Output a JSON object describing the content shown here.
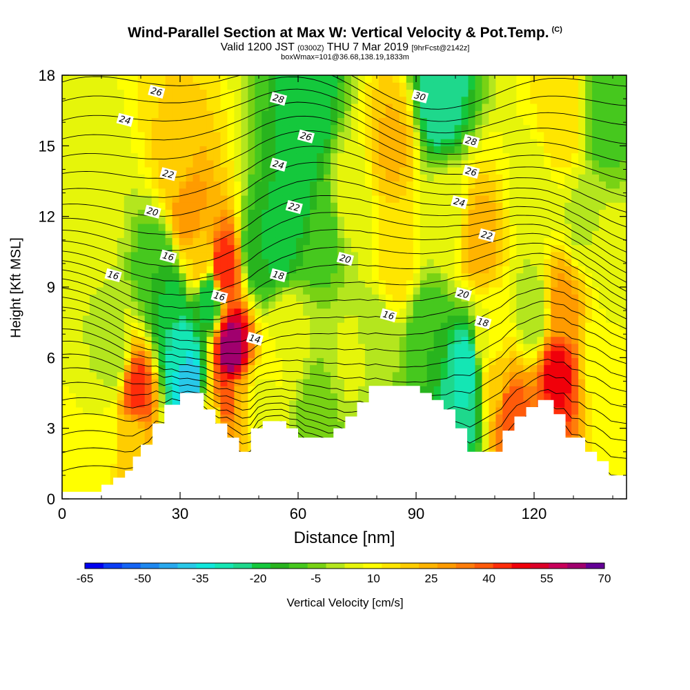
{
  "title": {
    "main": "Wind-Parallel Section at Max W: Vertical Velocity & Pot.Temp.",
    "mark": "(C)",
    "valid_a": "Valid 1200 JST",
    "valid_z": "(0300Z)",
    "valid_b": "THU 7 Mar 2019",
    "valid_c": "[9hrFcst@2142z]",
    "box": "boxWmax=101@36.68,138.19,1833m"
  },
  "chart_data": {
    "type": "heatmap",
    "xlabel": "Distance [nm]",
    "ylabel": "Height [Kft MSL]",
    "xlim": [
      0,
      143.5
    ],
    "ylim": [
      0,
      18
    ],
    "xticks": [
      0,
      30,
      60,
      90,
      120
    ],
    "yticks": [
      0,
      3,
      6,
      9,
      12,
      15,
      18
    ],
    "colorbar": {
      "label": "Vertical Velocity [cm/s]",
      "tick_labels": [
        "-65",
        "-50",
        "-35",
        "-20",
        "-5",
        "10",
        "25",
        "40",
        "55",
        "70"
      ],
      "levels": [
        -65,
        -60,
        -55,
        -50,
        -45,
        -40,
        -35,
        -30,
        -25,
        -20,
        -15,
        -10,
        -5,
        0,
        5,
        10,
        15,
        20,
        25,
        30,
        35,
        40,
        45,
        50,
        55,
        60,
        65,
        70
      ],
      "colors": [
        "#0000f0",
        "#0a3cf4",
        "#1464f4",
        "#1e88f0",
        "#28a8ee",
        "#28c8e8",
        "#10e6dc",
        "#14e6b4",
        "#1ed88c",
        "#14c83c",
        "#28b41e",
        "#46c81e",
        "#78d214",
        "#b4e61e",
        "#e6f50a",
        "#ffff00",
        "#ffe600",
        "#ffcd00",
        "#ffb400",
        "#ff9b00",
        "#ff7d0a",
        "#ff5a0a",
        "#ff2d0a",
        "#f0000a",
        "#dc0028",
        "#c8005a",
        "#a0006e",
        "#640096"
      ]
    },
    "vertical_velocity_cells": [
      {
        "x": 0,
        "z": 0,
        "w": 12
      },
      {
        "x": 10,
        "z": 3,
        "w": 10
      },
      {
        "x": 10,
        "z": 12,
        "w": 6
      },
      {
        "x": 19,
        "z": 4.5,
        "w": 48
      },
      {
        "x": 18,
        "z": 2.5,
        "w": 22
      },
      {
        "x": 13,
        "z": 6,
        "w": 0
      },
      {
        "x": 24,
        "z": 10,
        "w": -10
      },
      {
        "x": 28,
        "z": 8,
        "w": -18
      },
      {
        "x": 30,
        "z": 6.5,
        "w": -28
      },
      {
        "x": 32,
        "z": 5,
        "w": -40
      },
      {
        "x": 32,
        "z": 12.3,
        "w": 35
      },
      {
        "x": 29,
        "z": 14.2,
        "w": 22
      },
      {
        "x": 35,
        "z": 10,
        "w": 22
      },
      {
        "x": 37,
        "z": 8.6,
        "w": -20
      },
      {
        "x": 41,
        "z": 9.8,
        "w": 50
      },
      {
        "x": 43,
        "z": 6.3,
        "w": 70
      },
      {
        "x": 42,
        "z": 4.3,
        "w": 45
      },
      {
        "x": 45,
        "z": 4.0,
        "w": 25
      },
      {
        "x": 38,
        "z": 3.2,
        "w": 15
      },
      {
        "x": 50,
        "z": 10.5,
        "w": -15
      },
      {
        "x": 55,
        "z": 11,
        "w": -18
      },
      {
        "x": 60,
        "z": 13,
        "w": -18
      },
      {
        "x": 63,
        "z": 16.5,
        "w": -20
      },
      {
        "x": 66,
        "z": 11.5,
        "w": -8
      },
      {
        "x": 57,
        "z": 7,
        "w": 10
      },
      {
        "x": 50,
        "z": 4,
        "w": 8
      },
      {
        "x": 65,
        "z": 3.5,
        "w": -3
      },
      {
        "x": 74,
        "z": 6,
        "w": 6
      },
      {
        "x": 73,
        "z": 13,
        "w": 8
      },
      {
        "x": 84,
        "z": 15,
        "w": 26
      },
      {
        "x": 85,
        "z": 10,
        "w": 18
      },
      {
        "x": 80,
        "z": 6.5,
        "w": 0
      },
      {
        "x": 93,
        "z": 7,
        "w": -10
      },
      {
        "x": 96,
        "z": 17,
        "w": -25
      },
      {
        "x": 98,
        "z": 12,
        "w": 8
      },
      {
        "x": 103,
        "z": 5.5,
        "w": -30
      },
      {
        "x": 102,
        "z": 4,
        "w": -25
      },
      {
        "x": 106,
        "z": 11,
        "w": 28
      },
      {
        "x": 110,
        "z": 5,
        "w": 22
      },
      {
        "x": 114,
        "z": 3.6,
        "w": 45
      },
      {
        "x": 108,
        "z": 6.5,
        "w": 10
      },
      {
        "x": 120,
        "z": 8,
        "w": 0
      },
      {
        "x": 120,
        "z": 13,
        "w": 6
      },
      {
        "x": 126,
        "z": 5.4,
        "w": 52
      },
      {
        "x": 127,
        "z": 8.2,
        "w": 32
      },
      {
        "x": 127,
        "z": 16,
        "w": 20
      },
      {
        "x": 132,
        "z": 12,
        "w": 4
      },
      {
        "x": 138,
        "z": 16,
        "w": -8
      },
      {
        "x": 137,
        "z": 6,
        "w": 10
      },
      {
        "x": 142,
        "z": 3,
        "w": 12
      },
      {
        "x": 140,
        "z": 10,
        "w": 8
      }
    ],
    "terrain_top_kft": [
      [
        0,
        0.3
      ],
      [
        10,
        0.3
      ],
      [
        10,
        0.6
      ],
      [
        13,
        0.6
      ],
      [
        13,
        0.9
      ],
      [
        16,
        0.9
      ],
      [
        16,
        1.2
      ],
      [
        18,
        1.2
      ],
      [
        18,
        1.8
      ],
      [
        20,
        1.8
      ],
      [
        20,
        2.3
      ],
      [
        23,
        2.3
      ],
      [
        23,
        3.2
      ],
      [
        26,
        3.2
      ],
      [
        26,
        4.0
      ],
      [
        30,
        4.0
      ],
      [
        30,
        4.5
      ],
      [
        36,
        4.5
      ],
      [
        36,
        3.8
      ],
      [
        39,
        3.8
      ],
      [
        39,
        3.2
      ],
      [
        42,
        3.2
      ],
      [
        42,
        2.6
      ],
      [
        45,
        2.6
      ],
      [
        45,
        2.0
      ],
      [
        48,
        2.0
      ],
      [
        48,
        3.0
      ],
      [
        51,
        3.0
      ],
      [
        51,
        3.3
      ],
      [
        57,
        3.3
      ],
      [
        57,
        3.0
      ],
      [
        60,
        3.0
      ],
      [
        60,
        2.6
      ],
      [
        69,
        2.6
      ],
      [
        69,
        3.0
      ],
      [
        72,
        3.0
      ],
      [
        72,
        3.5
      ],
      [
        75,
        3.5
      ],
      [
        75,
        4.1
      ],
      [
        78,
        4.1
      ],
      [
        78,
        4.8
      ],
      [
        91,
        4.8
      ],
      [
        91,
        4.5
      ],
      [
        94,
        4.5
      ],
      [
        94,
        4.2
      ],
      [
        97,
        4.2
      ],
      [
        97,
        3.8
      ],
      [
        100,
        3.8
      ],
      [
        100,
        3.0
      ],
      [
        103,
        3.0
      ],
      [
        103,
        2.0
      ],
      [
        112,
        2.0
      ],
      [
        112,
        2.9
      ],
      [
        115,
        2.9
      ],
      [
        115,
        3.5
      ],
      [
        118,
        3.5
      ],
      [
        118,
        3.9
      ],
      [
        121,
        3.9
      ],
      [
        121,
        4.2
      ],
      [
        125,
        4.2
      ],
      [
        125,
        3.6
      ],
      [
        128,
        3.6
      ],
      [
        128,
        2.6
      ],
      [
        133,
        2.6
      ],
      [
        133,
        2.0
      ],
      [
        136,
        2.0
      ],
      [
        136,
        1.6
      ],
      [
        139,
        1.6
      ],
      [
        139,
        1.0
      ],
      [
        143.5,
        1.0
      ]
    ],
    "isentrope_labels": [
      {
        "text": "26",
        "x": 24,
        "z": 17.3
      },
      {
        "text": "24",
        "x": 16,
        "z": 16.1
      },
      {
        "text": "28",
        "x": 55,
        "z": 17.0
      },
      {
        "text": "30",
        "x": 91,
        "z": 17.1
      },
      {
        "text": "26",
        "x": 62,
        "z": 15.4
      },
      {
        "text": "28",
        "x": 104,
        "z": 15.2
      },
      {
        "text": "22",
        "x": 27,
        "z": 13.8
      },
      {
        "text": "24",
        "x": 55,
        "z": 14.2
      },
      {
        "text": "26",
        "x": 104,
        "z": 13.9
      },
      {
        "text": "20",
        "x": 23,
        "z": 12.2
      },
      {
        "text": "22",
        "x": 59,
        "z": 12.4
      },
      {
        "text": "24",
        "x": 101,
        "z": 12.6
      },
      {
        "text": "22",
        "x": 108,
        "z": 11.2
      },
      {
        "text": "16",
        "x": 27,
        "z": 10.3
      },
      {
        "text": "20",
        "x": 72,
        "z": 10.2
      },
      {
        "text": "16",
        "x": 13,
        "z": 9.5
      },
      {
        "text": "18",
        "x": 55,
        "z": 9.5
      },
      {
        "text": "16",
        "x": 40,
        "z": 8.6
      },
      {
        "text": "20",
        "x": 102,
        "z": 8.7
      },
      {
        "text": "16",
        "x": 83,
        "z": 7.8
      },
      {
        "text": "18",
        "x": 107,
        "z": 7.5
      },
      {
        "text": "14",
        "x": 49,
        "z": 6.8
      }
    ]
  }
}
